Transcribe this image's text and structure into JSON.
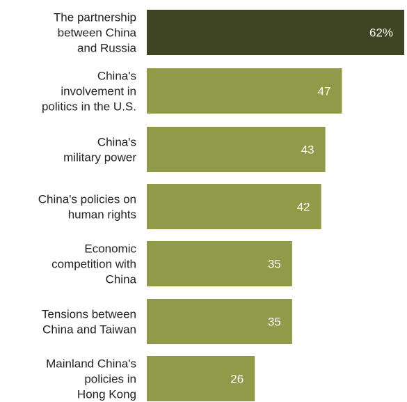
{
  "chart_data": {
    "type": "bar",
    "orientation": "horizontal",
    "categories": [
      [
        "The partnership",
        "between China",
        "and Russia"
      ],
      [
        "China's",
        "involvement in",
        "politics in the U.S."
      ],
      [
        "China's",
        "military power"
      ],
      [
        "China's policies on",
        "human rights"
      ],
      [
        "Economic",
        "competition with",
        "China"
      ],
      [
        "Tensions between",
        "China and Taiwan"
      ],
      [
        "Mainland China's",
        "policies in",
        "Hong Kong"
      ]
    ],
    "values": [
      62,
      47,
      43,
      42,
      35,
      35,
      26
    ],
    "value_labels": [
      "62%",
      "47",
      "43",
      "42",
      "35",
      "35",
      "26"
    ],
    "xlim": [
      0,
      65
    ],
    "colors": {
      "highlight": "#3f4423",
      "bar": "#919a48"
    },
    "highlight_index": 0,
    "title": "",
    "xlabel": "",
    "ylabel": ""
  }
}
